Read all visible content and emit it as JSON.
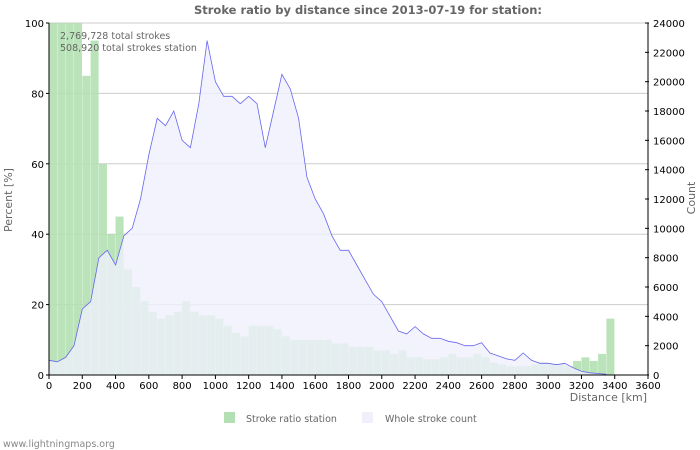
{
  "chart_data": {
    "type": "bar+area",
    "title": "Stroke ratio by distance since 2013-07-19 for station:",
    "annotations": [
      "2,769,728 total strokes",
      "508,920 total strokes station"
    ],
    "xlabel": "Distance   [km]",
    "ylabel_left": "Percent   [%]",
    "ylabel_right": "Count",
    "xlim": [
      0,
      3600
    ],
    "ylim_left": [
      0,
      100
    ],
    "ylim_right": [
      0,
      24000
    ],
    "x_ticks": [
      0,
      200,
      400,
      600,
      800,
      1000,
      1200,
      1400,
      1600,
      1800,
      2000,
      2200,
      2400,
      2600,
      2800,
      3000,
      3200,
      3400,
      3600
    ],
    "y_left_ticks": [
      0,
      20,
      40,
      60,
      80,
      100
    ],
    "y_right_ticks": [
      0,
      2000,
      4000,
      6000,
      8000,
      10000,
      12000,
      14000,
      16000,
      18000,
      20000,
      22000,
      24000
    ],
    "grid": true,
    "legend_placement": "bottom",
    "colors": {
      "ratio": "#b3e0b3",
      "count_fill": "#f0f0fc",
      "count_line": "#6666ee"
    },
    "series": [
      {
        "name": "Stroke ratio station",
        "axis": "left",
        "bin_km": 50,
        "x": [
          0,
          50,
          100,
          150,
          200,
          250,
          300,
          350,
          400,
          450,
          500,
          550,
          600,
          650,
          700,
          750,
          800,
          850,
          900,
          950,
          1000,
          1050,
          1100,
          1150,
          1200,
          1250,
          1300,
          1350,
          1400,
          1450,
          1500,
          1550,
          1600,
          1650,
          1700,
          1750,
          1800,
          1850,
          1900,
          1950,
          2000,
          2050,
          2100,
          2150,
          2200,
          2250,
          2300,
          2350,
          2400,
          2450,
          2500,
          2550,
          2600,
          2650,
          2700,
          2750,
          2800,
          2850,
          2900,
          2950,
          3000,
          3050,
          3100,
          3150,
          3200,
          3250,
          3300,
          3350
        ],
        "values": [
          100,
          100,
          100,
          100,
          85,
          95,
          60,
          40,
          45,
          30,
          25,
          21,
          18,
          16,
          17,
          18,
          21,
          18,
          17,
          17,
          16,
          14,
          12,
          11,
          14,
          14,
          14,
          13,
          11,
          10,
          10,
          10,
          10,
          10,
          9,
          9,
          8,
          8,
          8,
          7,
          7,
          6,
          7,
          5,
          5,
          4.5,
          4.5,
          5,
          6,
          5,
          5,
          6,
          5,
          3.5,
          3,
          2.5,
          2.5,
          2.5,
          3,
          3.5,
          3,
          3,
          2.5,
          4,
          5,
          4,
          6,
          16
        ]
      },
      {
        "name": "Whole stroke count",
        "axis": "right",
        "x": [
          0,
          50,
          100,
          150,
          200,
          250,
          300,
          350,
          400,
          450,
          500,
          550,
          600,
          650,
          700,
          750,
          800,
          850,
          900,
          950,
          1000,
          1050,
          1100,
          1150,
          1200,
          1250,
          1300,
          1350,
          1400,
          1450,
          1500,
          1550,
          1600,
          1650,
          1700,
          1750,
          1800,
          1850,
          1900,
          1950,
          2000,
          2050,
          2100,
          2150,
          2200,
          2250,
          2300,
          2350,
          2400,
          2450,
          2500,
          2550,
          2600,
          2650,
          2700,
          2750,
          2800,
          2850,
          2900,
          2950,
          3000,
          3050,
          3100,
          3150,
          3200,
          3250,
          3300,
          3350
        ],
        "values": [
          1000,
          900,
          1200,
          2000,
          4500,
          5000,
          8000,
          8500,
          7500,
          9500,
          10000,
          12000,
          15000,
          17500,
          17000,
          18000,
          16000,
          15500,
          18500,
          22800,
          20000,
          19000,
          19000,
          18500,
          19000,
          18500,
          15500,
          18000,
          20500,
          19500,
          17500,
          13500,
          12000,
          11000,
          9500,
          8500,
          8500,
          7500,
          6500,
          5500,
          5000,
          4000,
          3000,
          2800,
          3300,
          2800,
          2500,
          2500,
          2300,
          2200,
          2000,
          2000,
          2200,
          1500,
          1300,
          1100,
          1000,
          1500,
          1000,
          800,
          800,
          700,
          800,
          500,
          250,
          150,
          100,
          50
        ]
      }
    ],
    "legend": [
      "Stroke ratio station",
      "Whole stroke count"
    ]
  },
  "footer": "www.lightningmaps.org"
}
